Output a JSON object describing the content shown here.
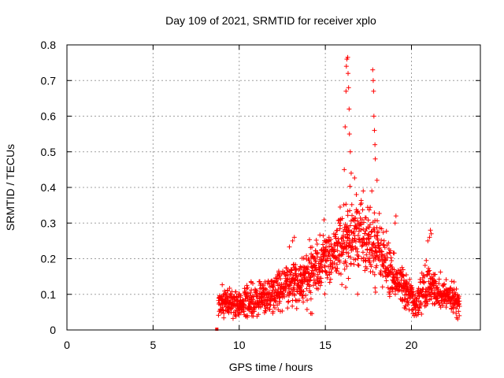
{
  "chart_data": {
    "type": "scatter",
    "title": "Day 109 of 2021, SRMTID for receiver xplo",
    "xlabel": "GPS time / hours",
    "ylabel": "SRMTID / TECUs",
    "xlim": [
      0,
      24
    ],
    "ylim": [
      0,
      0.8
    ],
    "xticks": [
      0,
      5,
      10,
      15,
      20
    ],
    "xtick_labels": [
      "0",
      "5",
      "10",
      "15",
      "20"
    ],
    "yticks": [
      0,
      0.1,
      0.2,
      0.3,
      0.4,
      0.5,
      0.6,
      0.7,
      0.8
    ],
    "ytick_labels": [
      "0",
      "0.1",
      "0.2",
      "0.3",
      "0.4",
      "0.5",
      "0.6",
      "0.7",
      "0.8"
    ],
    "grid": true,
    "marker_color": "#ff0000",
    "series": [
      {
        "name": "xplo",
        "marker": "plus",
        "envelope": [
          {
            "x": 8.8,
            "mean": 0.07,
            "spread": 0.04
          },
          {
            "x": 9.5,
            "mean": 0.07,
            "spread": 0.035
          },
          {
            "x": 10.5,
            "mean": 0.08,
            "spread": 0.04
          },
          {
            "x": 11.5,
            "mean": 0.09,
            "spread": 0.045
          },
          {
            "x": 12.5,
            "mean": 0.12,
            "spread": 0.05
          },
          {
            "x": 13.5,
            "mean": 0.14,
            "spread": 0.06
          },
          {
            "x": 14.5,
            "mean": 0.18,
            "spread": 0.07
          },
          {
            "x": 15.5,
            "mean": 0.22,
            "spread": 0.08
          },
          {
            "x": 16.5,
            "mean": 0.26,
            "spread": 0.09
          },
          {
            "x": 17.5,
            "mean": 0.25,
            "spread": 0.09
          },
          {
            "x": 18.5,
            "mean": 0.18,
            "spread": 0.07
          },
          {
            "x": 19.5,
            "mean": 0.12,
            "spread": 0.05
          },
          {
            "x": 20.2,
            "mean": 0.08,
            "spread": 0.04
          },
          {
            "x": 21.0,
            "mean": 0.13,
            "spread": 0.06
          },
          {
            "x": 21.8,
            "mean": 0.1,
            "spread": 0.04
          },
          {
            "x": 22.8,
            "mean": 0.08,
            "spread": 0.03
          }
        ],
        "peaks": [
          {
            "x": 13.1,
            "y": 0.25
          },
          {
            "x": 13.2,
            "y": 0.26
          },
          {
            "x": 16.1,
            "y": 0.45
          },
          {
            "x": 16.15,
            "y": 0.57
          },
          {
            "x": 16.2,
            "y": 0.67
          },
          {
            "x": 16.22,
            "y": 0.74
          },
          {
            "x": 16.25,
            "y": 0.76
          },
          {
            "x": 16.3,
            "y": 0.765
          },
          {
            "x": 16.32,
            "y": 0.72
          },
          {
            "x": 16.35,
            "y": 0.68
          },
          {
            "x": 16.38,
            "y": 0.62
          },
          {
            "x": 16.4,
            "y": 0.55
          },
          {
            "x": 16.45,
            "y": 0.5
          },
          {
            "x": 16.5,
            "y": 0.44
          },
          {
            "x": 17.75,
            "y": 0.73
          },
          {
            "x": 17.78,
            "y": 0.7
          },
          {
            "x": 17.8,
            "y": 0.67
          },
          {
            "x": 17.82,
            "y": 0.6
          },
          {
            "x": 17.85,
            "y": 0.56
          },
          {
            "x": 17.88,
            "y": 0.52
          },
          {
            "x": 17.9,
            "y": 0.48
          },
          {
            "x": 18.0,
            "y": 0.42
          },
          {
            "x": 17.7,
            "y": 0.39
          },
          {
            "x": 16.8,
            "y": 0.38
          },
          {
            "x": 17.2,
            "y": 0.39
          },
          {
            "x": 19.05,
            "y": 0.3
          },
          {
            "x": 19.1,
            "y": 0.32
          },
          {
            "x": 21.05,
            "y": 0.26
          },
          {
            "x": 21.1,
            "y": 0.28
          },
          {
            "x": 21.15,
            "y": 0.27
          },
          {
            "x": 20.95,
            "y": 0.25
          }
        ],
        "start_marker": {
          "x": 8.7,
          "y": 0.0
        }
      }
    ]
  }
}
